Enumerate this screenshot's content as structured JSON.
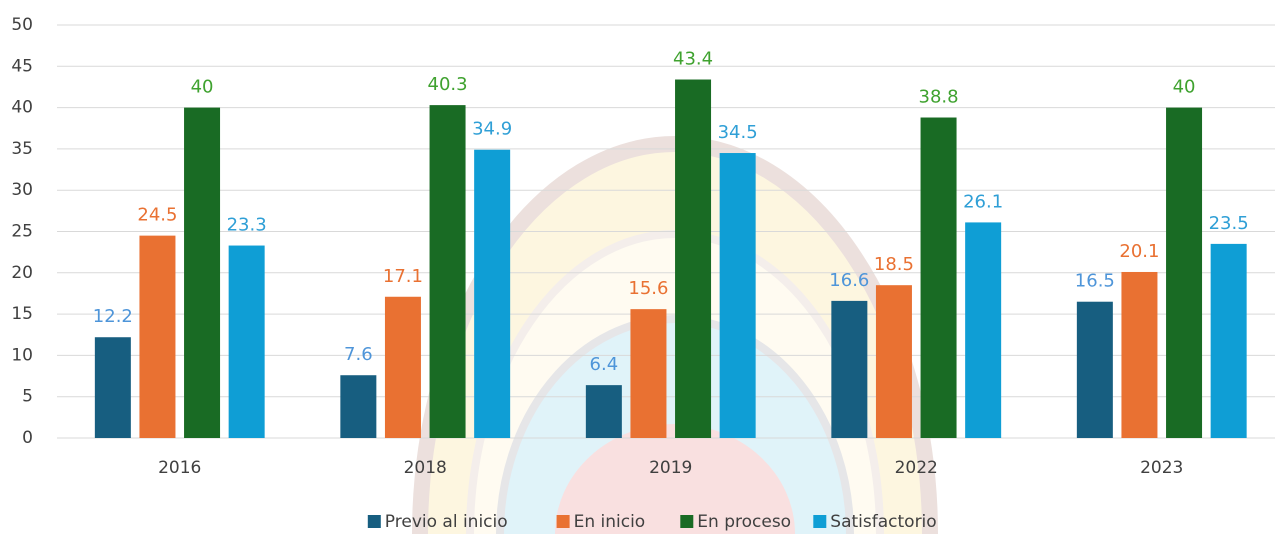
{
  "chart_data": {
    "type": "bar",
    "categories": [
      "2016",
      "2018",
      "2019",
      "2022",
      "2023"
    ],
    "series": [
      {
        "name": "Previo al inicio",
        "color": "#175e80",
        "label_color": "#4e95d9",
        "values": [
          12.2,
          7.6,
          6.4,
          16.6,
          16.5
        ]
      },
      {
        "name": "En inicio",
        "color": "#e97132",
        "label_color": "#e97132",
        "values": [
          24.5,
          17.1,
          15.6,
          18.5,
          20.1
        ]
      },
      {
        "name": "En proceso",
        "color": "#196b24",
        "label_color": "#3fa22f",
        "values": [
          40,
          40.3,
          43.4,
          38.8,
          40
        ]
      },
      {
        "name": "Satisfactorio",
        "color": "#0f9ed5",
        "label_color": "#2f9fd6",
        "values": [
          23.3,
          34.9,
          34.5,
          26.1,
          23.5
        ]
      }
    ],
    "ylim": [
      0,
      50
    ],
    "yticks": [
      0,
      5,
      10,
      15,
      20,
      25,
      30,
      35,
      40,
      45,
      50
    ],
    "grid": true,
    "legend": "bottom"
  }
}
